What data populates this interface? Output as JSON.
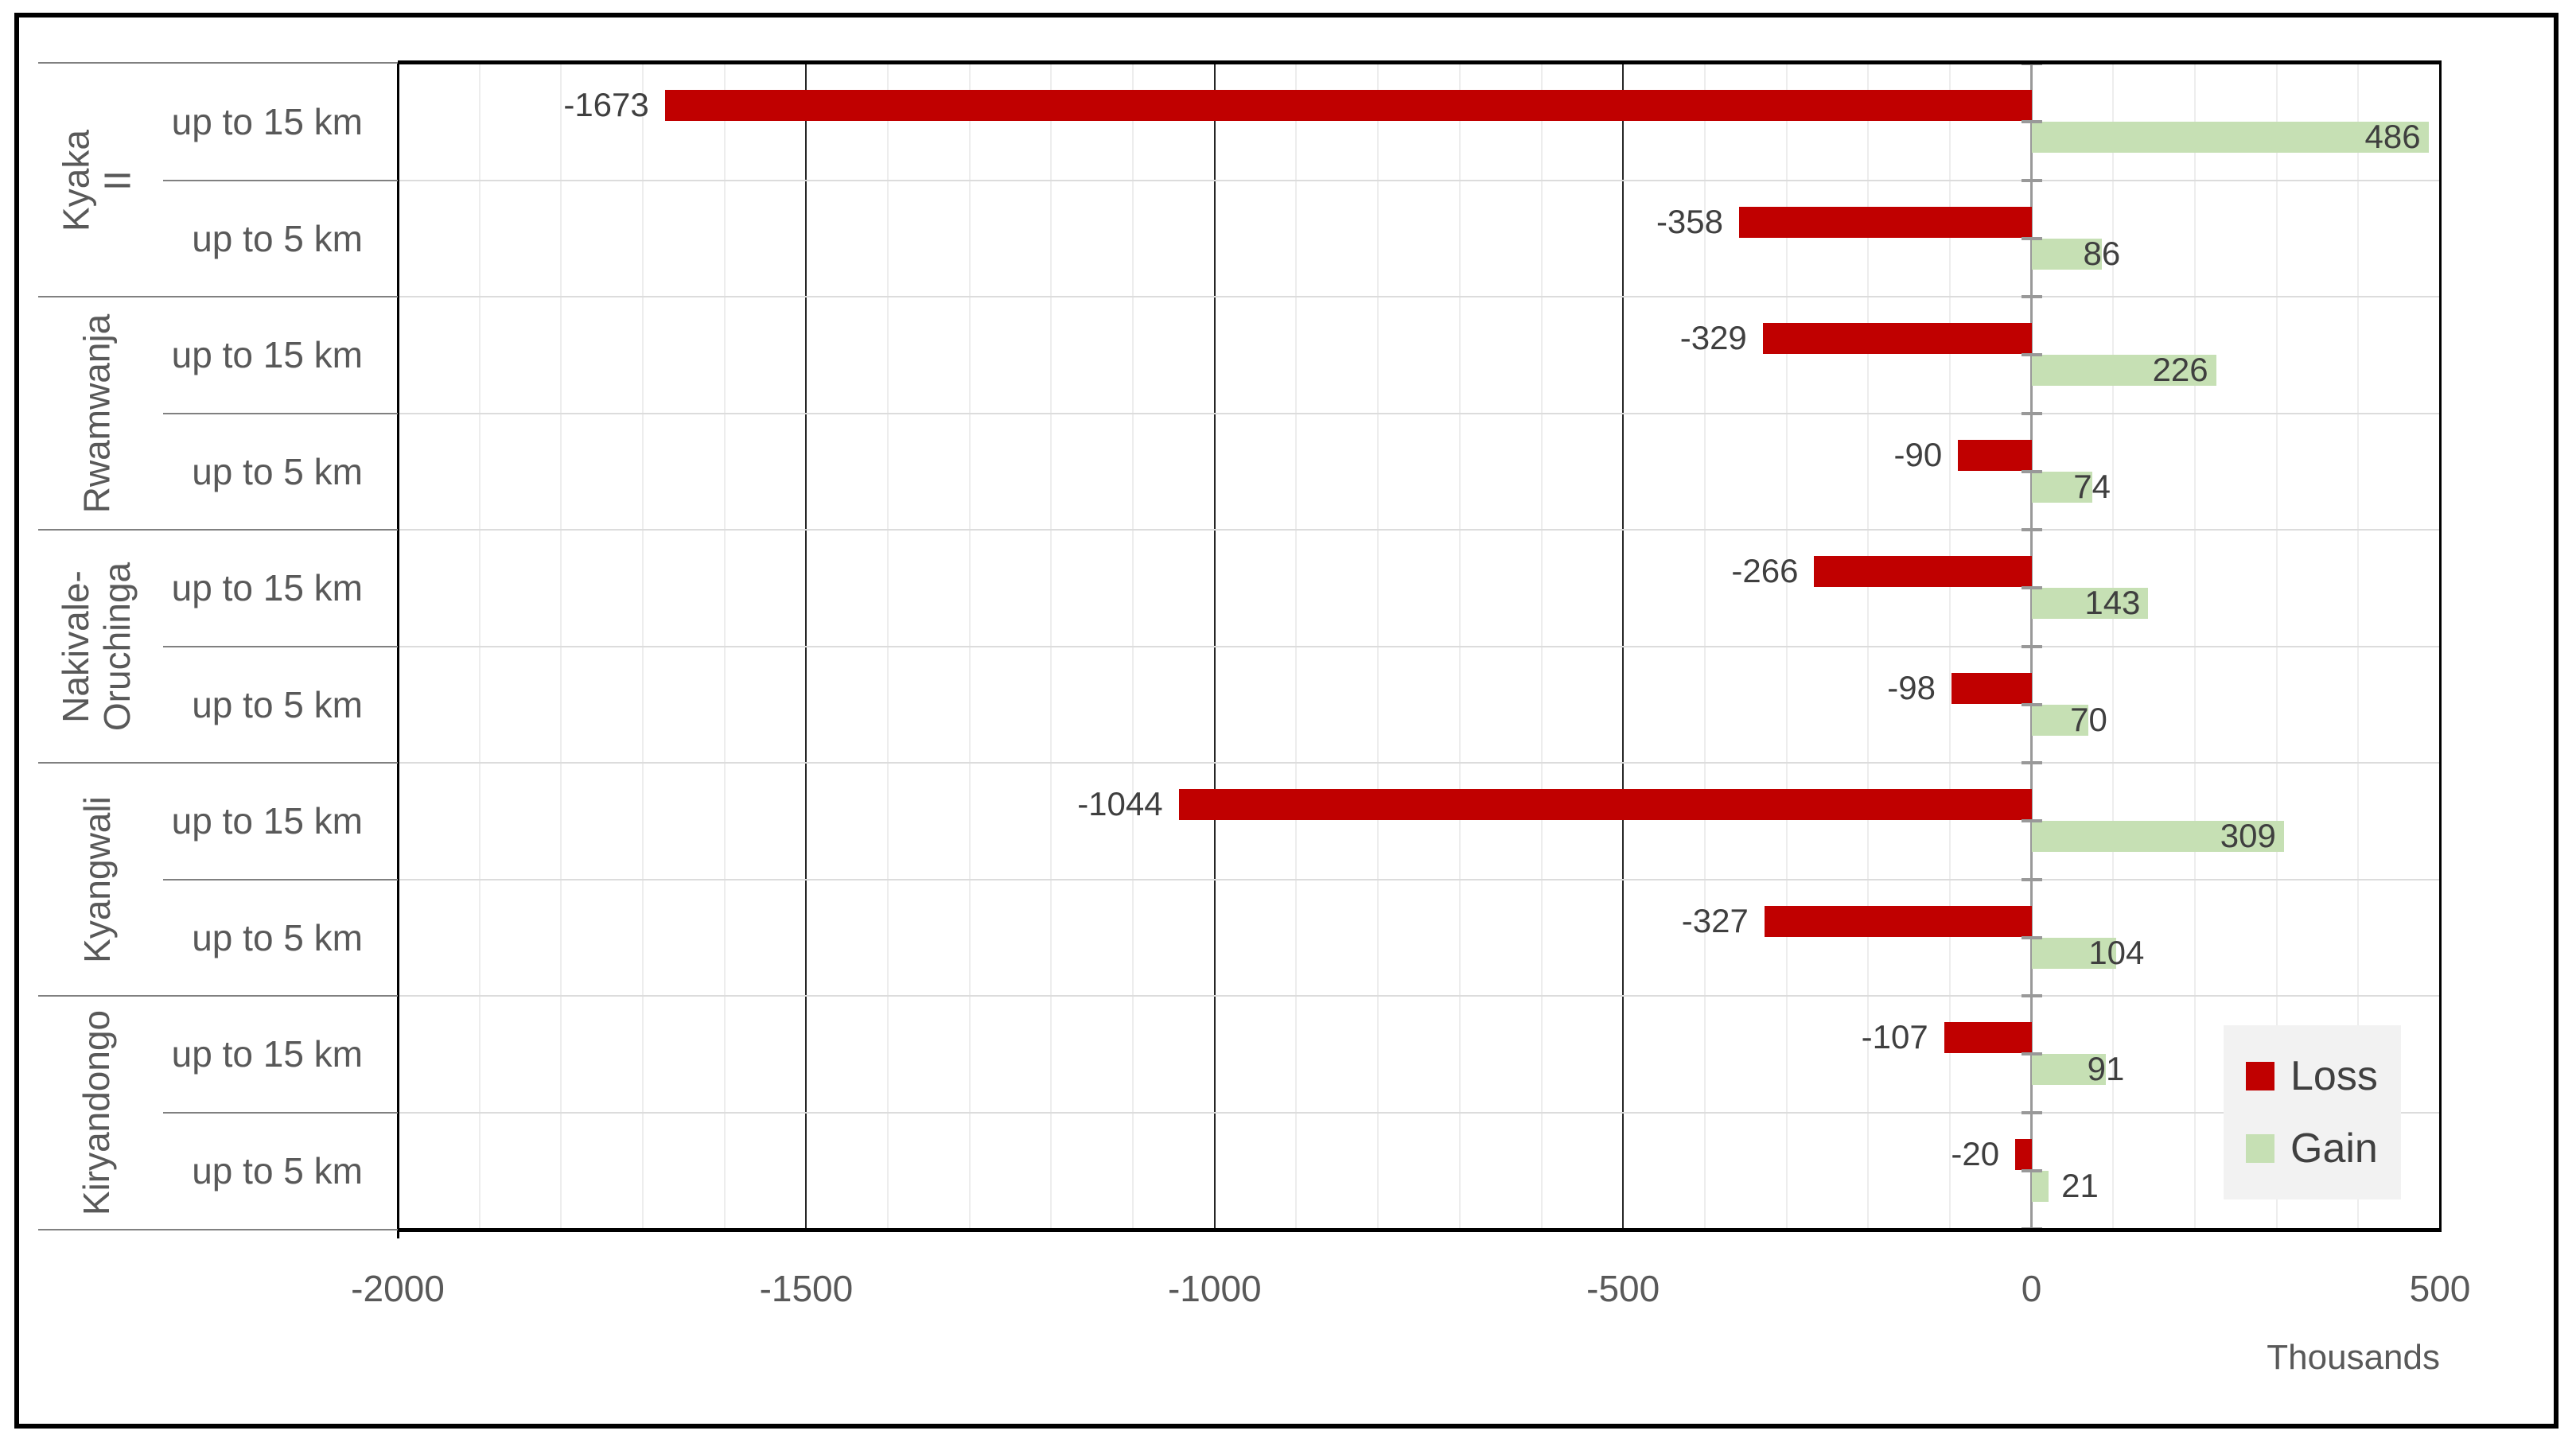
{
  "chart_data": {
    "type": "bar",
    "orientation": "horizontal",
    "title": "",
    "axis_note": "Thousands",
    "xlabel": "",
    "ylabel": "",
    "xlim": [
      -2000,
      500
    ],
    "x_ticks": [
      "-2000",
      "-1500",
      "-1000",
      "-500",
      "0",
      "500"
    ],
    "x_tick_values": [
      -2000,
      -1500,
      -1000,
      -500,
      0,
      500
    ],
    "minor_unit": 100,
    "major_unit": 500,
    "grid": "on",
    "series": [
      {
        "name": "Loss",
        "color": "#C00000"
      },
      {
        "name": "Gain",
        "color": "#C6E0B4"
      }
    ],
    "groups": [
      {
        "label": "Kyaka II",
        "label_lines": [
          "Kyaka II"
        ],
        "rows": [
          {
            "label": "up to 15 km",
            "loss": -1673,
            "gain": 486
          },
          {
            "label": "up to 5 km",
            "loss": -358,
            "gain": 86
          }
        ]
      },
      {
        "label": "Rwamwanja",
        "label_lines": [
          "Rwamwanja"
        ],
        "rows": [
          {
            "label": "up to 15 km",
            "loss": -329,
            "gain": 226
          },
          {
            "label": "up to 5 km",
            "loss": -90,
            "gain": 74
          }
        ]
      },
      {
        "label": "Nakivale-Oruchinga",
        "label_lines": [
          "Nakivale-",
          "Oruchinga"
        ],
        "rows": [
          {
            "label": "up to 15 km",
            "loss": -266,
            "gain": 143
          },
          {
            "label": "up to 5 km",
            "loss": -98,
            "gain": 70
          }
        ]
      },
      {
        "label": "Kyangwali",
        "label_lines": [
          "Kyangwali"
        ],
        "rows": [
          {
            "label": "up to 15 km",
            "loss": -1044,
            "gain": 309
          },
          {
            "label": "up to 5 km",
            "loss": -327,
            "gain": 104
          }
        ]
      },
      {
        "label": "Kiryandongo",
        "label_lines": [
          "Kiryandongo"
        ],
        "rows": [
          {
            "label": "up to 15 km",
            "loss": -107,
            "gain": 91
          },
          {
            "label": "up to 5 km",
            "loss": -20,
            "gain": 21
          }
        ]
      }
    ],
    "legend": {
      "position": "bottom-right",
      "entries": [
        "Loss",
        "Gain"
      ]
    }
  },
  "colors": {
    "loss": "#C00000",
    "gain": "#C6E0B4",
    "axis_text": "#595959",
    "data_label_text": "#3F3F3F",
    "legend_bg": "#F2F2F2",
    "legend_text": "#404040",
    "minor_grid": "#EDEDED",
    "major_grid": "#262626",
    "zero_line": "#999999",
    "plot_row_separator": "#DCDCDC",
    "label_area_separator": "#808080",
    "border": "#000000"
  }
}
